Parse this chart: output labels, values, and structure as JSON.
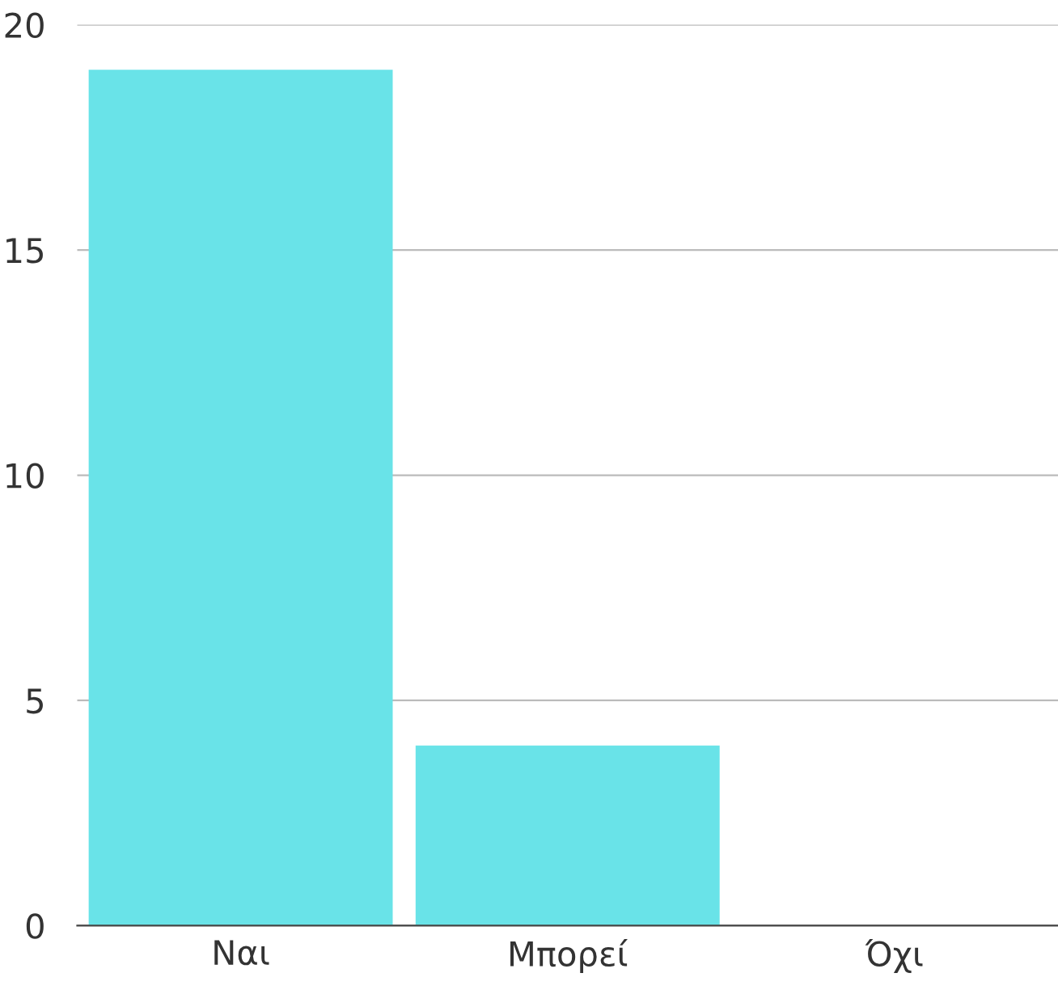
{
  "chart_data": {
    "type": "bar",
    "categories": [
      "Ναι",
      "Μπορεί",
      "Όχι"
    ],
    "values": [
      19,
      4,
      0
    ],
    "color": "#69e3e8",
    "ylim": [
      0,
      20
    ],
    "yticks": [
      0,
      5,
      10,
      15,
      20
    ],
    "grid": "y"
  }
}
